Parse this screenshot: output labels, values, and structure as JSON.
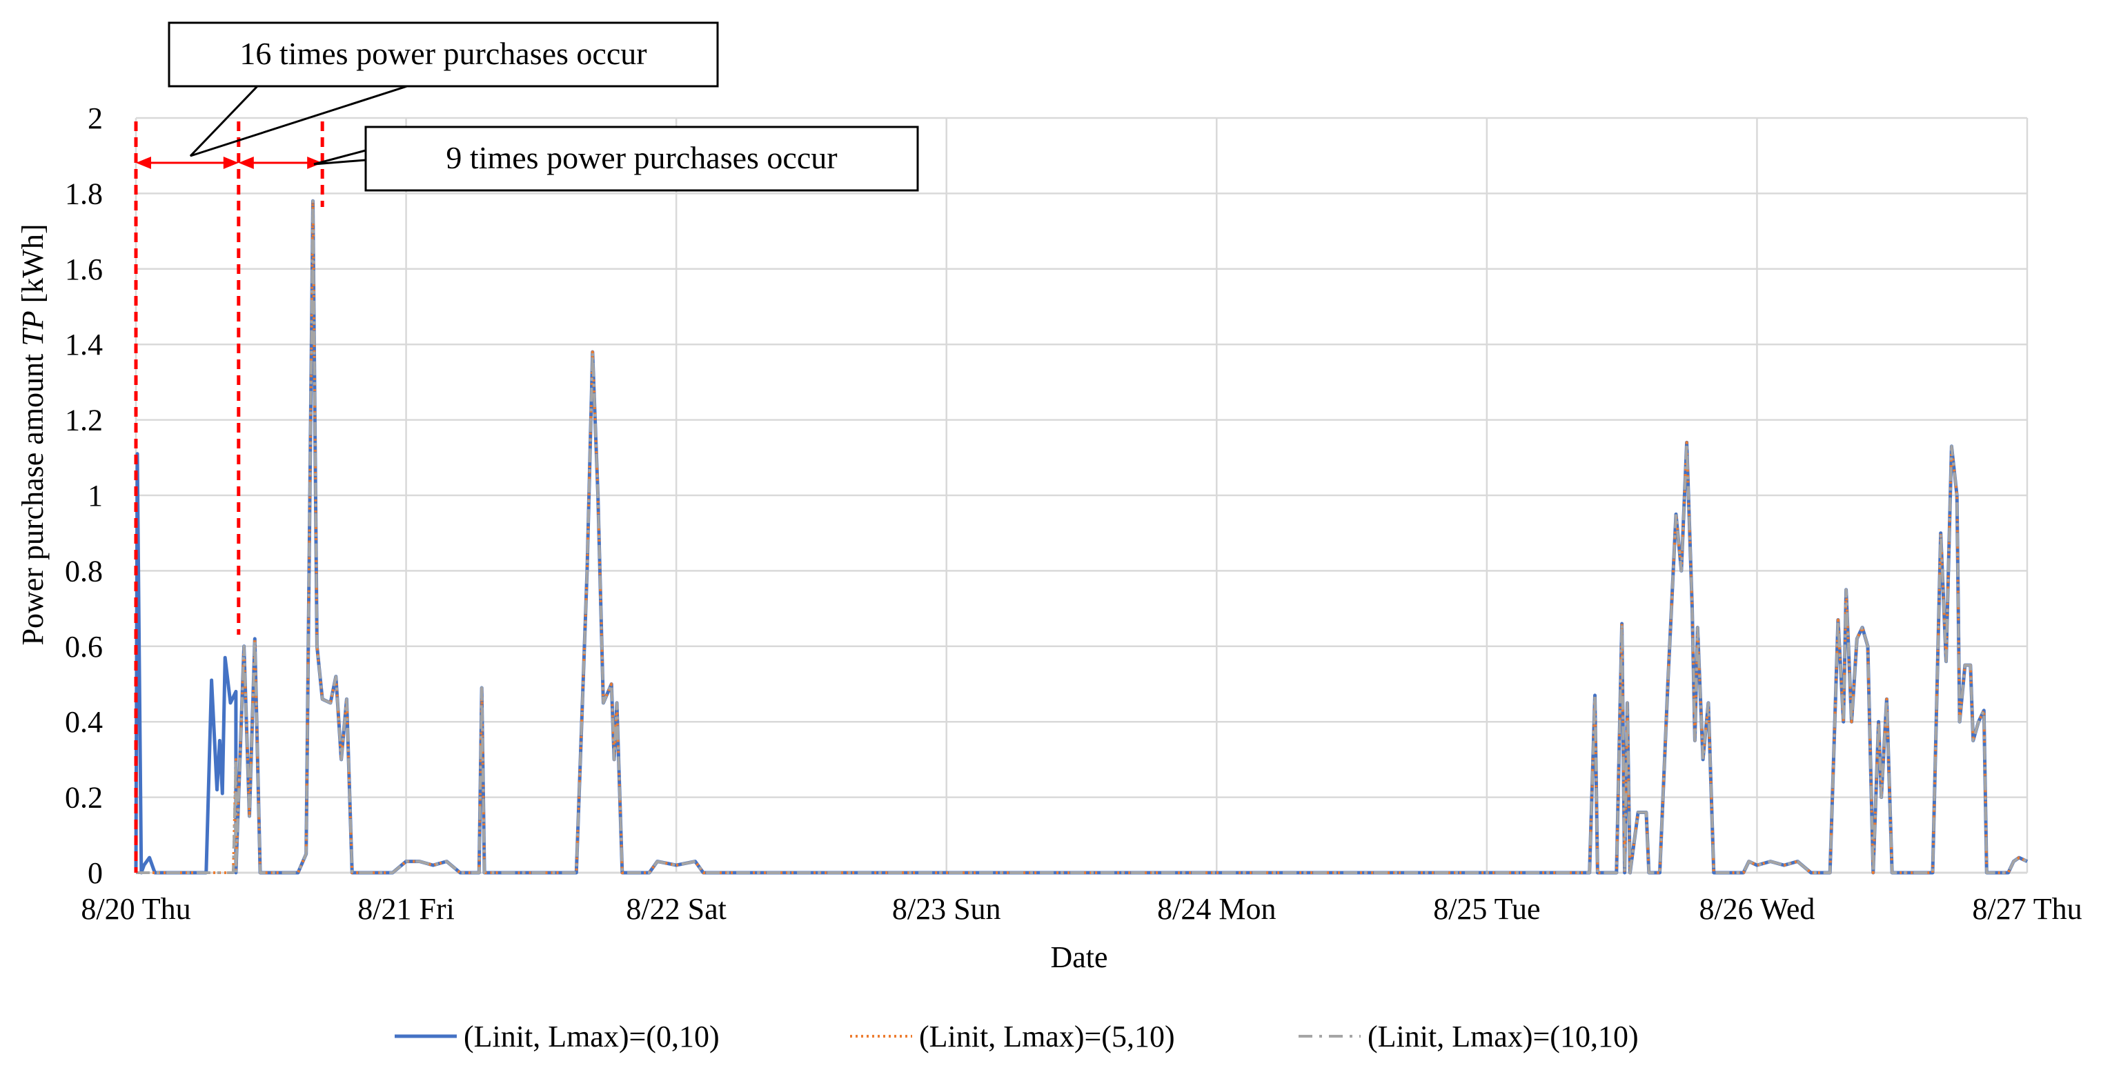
{
  "chart_data": {
    "type": "line",
    "title": "",
    "xlabel": "Date",
    "ylabel_prefix": "Power purchase amount ",
    "ylabel_var": "TP",
    "ylabel_unit": " [kWh]",
    "xlim": [
      0,
      7
    ],
    "ylim": [
      0,
      2
    ],
    "grid": true,
    "legend_position": "bottom",
    "x_ticks": [
      {
        "x": 0,
        "label": "8/20 Thu"
      },
      {
        "x": 1,
        "label": "8/21 Fri"
      },
      {
        "x": 2,
        "label": "8/22 Sat"
      },
      {
        "x": 3,
        "label": "8/23 Sun"
      },
      {
        "x": 4,
        "label": "8/24 Mon"
      },
      {
        "x": 5,
        "label": "8/25 Tue"
      },
      {
        "x": 6,
        "label": "8/26 Wed"
      },
      {
        "x": 7,
        "label": "8/27 Thu"
      }
    ],
    "y_ticks": [
      {
        "y": 0,
        "label": "0"
      },
      {
        "y": 0.2,
        "label": "0.2"
      },
      {
        "y": 0.4,
        "label": "0.4"
      },
      {
        "y": 0.6,
        "label": "0.6"
      },
      {
        "y": 0.8,
        "label": "0.8"
      },
      {
        "y": 1,
        "label": "1"
      },
      {
        "y": 1.2,
        "label": "1.2"
      },
      {
        "y": 1.4,
        "label": "1.4"
      },
      {
        "y": 1.6,
        "label": "1.6"
      },
      {
        "y": 1.8,
        "label": "1.8"
      },
      {
        "y": 2,
        "label": "2"
      }
    ],
    "common_series": [
      [
        0.37,
        0
      ],
      [
        0.4,
        0.6
      ],
      [
        0.42,
        0.15
      ],
      [
        0.44,
        0.62
      ],
      [
        0.46,
        0
      ],
      [
        0.6,
        0
      ],
      [
        0.63,
        0.05
      ],
      [
        0.655,
        1.78
      ],
      [
        0.67,
        0.6
      ],
      [
        0.69,
        0.46
      ],
      [
        0.72,
        0.45
      ],
      [
        0.74,
        0.52
      ],
      [
        0.76,
        0.3
      ],
      [
        0.78,
        0.46
      ],
      [
        0.8,
        0
      ],
      [
        0.95,
        0
      ],
      [
        1.0,
        0.03
      ],
      [
        1.05,
        0.03
      ],
      [
        1.1,
        0.02
      ],
      [
        1.15,
        0.03
      ],
      [
        1.2,
        0
      ],
      [
        1.27,
        0
      ],
      [
        1.28,
        0.49
      ],
      [
        1.29,
        0
      ],
      [
        1.63,
        0
      ],
      [
        1.67,
        0.8
      ],
      [
        1.69,
        1.38
      ],
      [
        1.71,
        1.0
      ],
      [
        1.73,
        0.45
      ],
      [
        1.76,
        0.5
      ],
      [
        1.77,
        0.3
      ],
      [
        1.78,
        0.45
      ],
      [
        1.8,
        0
      ],
      [
        1.9,
        0
      ],
      [
        1.93,
        0.03
      ],
      [
        2.0,
        0.02
      ],
      [
        2.07,
        0.03
      ],
      [
        2.1,
        0
      ],
      [
        5.38,
        0
      ],
      [
        5.4,
        0.47
      ],
      [
        5.41,
        0
      ],
      [
        5.48,
        0
      ],
      [
        5.5,
        0.66
      ],
      [
        5.51,
        0
      ],
      [
        5.52,
        0.45
      ],
      [
        5.53,
        0
      ],
      [
        5.56,
        0.16
      ],
      [
        5.59,
        0.16
      ],
      [
        5.6,
        0
      ],
      [
        5.64,
        0
      ],
      [
        5.67,
        0.5
      ],
      [
        5.7,
        0.95
      ],
      [
        5.72,
        0.8
      ],
      [
        5.74,
        1.14
      ],
      [
        5.76,
        0.7
      ],
      [
        5.77,
        0.35
      ],
      [
        5.78,
        0.65
      ],
      [
        5.8,
        0.3
      ],
      [
        5.82,
        0.45
      ],
      [
        5.84,
        0
      ],
      [
        5.95,
        0
      ],
      [
        5.97,
        0.03
      ],
      [
        6.0,
        0.02
      ],
      [
        6.05,
        0.03
      ],
      [
        6.1,
        0.02
      ],
      [
        6.15,
        0.03
      ],
      [
        6.2,
        0
      ],
      [
        6.27,
        0
      ],
      [
        6.3,
        0.67
      ],
      [
        6.32,
        0.4
      ],
      [
        6.33,
        0.75
      ],
      [
        6.35,
        0.4
      ],
      [
        6.37,
        0.62
      ],
      [
        6.39,
        0.65
      ],
      [
        6.41,
        0.6
      ],
      [
        6.43,
        0
      ],
      [
        6.45,
        0.4
      ],
      [
        6.46,
        0.2
      ],
      [
        6.48,
        0.46
      ],
      [
        6.5,
        0
      ],
      [
        6.65,
        0
      ],
      [
        6.68,
        0.9
      ],
      [
        6.7,
        0.56
      ],
      [
        6.72,
        1.13
      ],
      [
        6.74,
        1.0
      ],
      [
        6.75,
        0.4
      ],
      [
        6.77,
        0.55
      ],
      [
        6.79,
        0.55
      ],
      [
        6.8,
        0.35
      ],
      [
        6.82,
        0.4
      ],
      [
        6.84,
        0.43
      ],
      [
        6.85,
        0
      ],
      [
        6.93,
        0
      ],
      [
        6.95,
        0.03
      ],
      [
        6.97,
        0.04
      ],
      [
        7.0,
        0.03
      ]
    ],
    "series": [
      {
        "name": "(Linit, Lmax)=(0,10)",
        "color": "#4472C4",
        "style": "solid",
        "start": [
          [
            0,
            0
          ],
          [
            0.005,
            1.11
          ],
          [
            0.02,
            0
          ],
          [
            0.03,
            0.02
          ],
          [
            0.05,
            0.04
          ],
          [
            0.07,
            0
          ],
          [
            0.26,
            0
          ],
          [
            0.28,
            0.51
          ],
          [
            0.3,
            0.22
          ],
          [
            0.31,
            0.35
          ],
          [
            0.32,
            0.21
          ],
          [
            0.33,
            0.57
          ],
          [
            0.35,
            0.45
          ],
          [
            0.37,
            0.48
          ]
        ]
      },
      {
        "name": "(Linit, Lmax)=(5,10)",
        "color": "#ED7D31",
        "style": "dotted",
        "start": [
          [
            0,
            0
          ],
          [
            0.36,
            0
          ],
          [
            0.37,
            0.3
          ]
        ]
      },
      {
        "name": "(Linit, Lmax)=(10,10)",
        "color": "#A5A5A5",
        "style": "dashdot",
        "start": [
          [
            0,
            0
          ],
          [
            0.36,
            0
          ],
          [
            0.37,
            0.3
          ]
        ]
      }
    ],
    "annotations": [
      {
        "text": "16 times power purchases occur",
        "x_start": 0,
        "x_end": 0.38
      },
      {
        "text": "9 times power purchases occur",
        "x_start": 0.38,
        "x_end": 0.69
      }
    ]
  }
}
